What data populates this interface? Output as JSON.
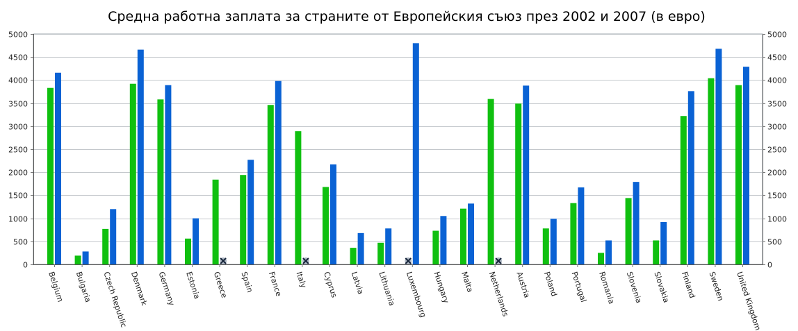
{
  "chart_data": {
    "type": "bar",
    "title": "Средна работна заплата за страните от Европейския съюз през 2002 и 2007 (в евро)",
    "xlabel": "",
    "ylabel": "",
    "ylim": [
      0,
      5000
    ],
    "yticks": [
      0,
      500,
      1000,
      1500,
      2000,
      2500,
      3000,
      3500,
      4000,
      4500,
      5000
    ],
    "grid": true,
    "legend": "none",
    "colors": {
      "series_2002": "#10c010",
      "series_2007": "#0a62d4",
      "missing_marker": "#16243a"
    },
    "categories": [
      "Belgium",
      "Bulgaria",
      "Czech Republic",
      "Denmark",
      "Germany",
      "Estonia",
      "Greece",
      "Spain",
      "France",
      "Italy",
      "Cyprus",
      "Latvia",
      "Lithuania",
      "Luxembourg",
      "Hungary",
      "Malta",
      "Netherlands",
      "Austria",
      "Poland",
      "Portugal",
      "Romania",
      "Slovenia",
      "Slovakia",
      "Finland",
      "Sweden",
      "United Kingdom"
    ],
    "series": [
      {
        "values": [
          3830,
          190,
          770,
          3920,
          3580,
          560,
          1840,
          1940,
          3460,
          2890,
          1680,
          360,
          470,
          null,
          730,
          1210,
          3590,
          3490,
          780,
          1330,
          250,
          1440,
          520,
          3220,
          4040,
          3890
        ]
      },
      {
        "values": [
          4160,
          280,
          1200,
          4660,
          3890,
          1000,
          null,
          2270,
          3980,
          null,
          2170,
          680,
          780,
          4800,
          1050,
          1320,
          null,
          3880,
          990,
          1670,
          520,
          1790,
          920,
          3760,
          4680,
          4290
        ]
      }
    ]
  }
}
